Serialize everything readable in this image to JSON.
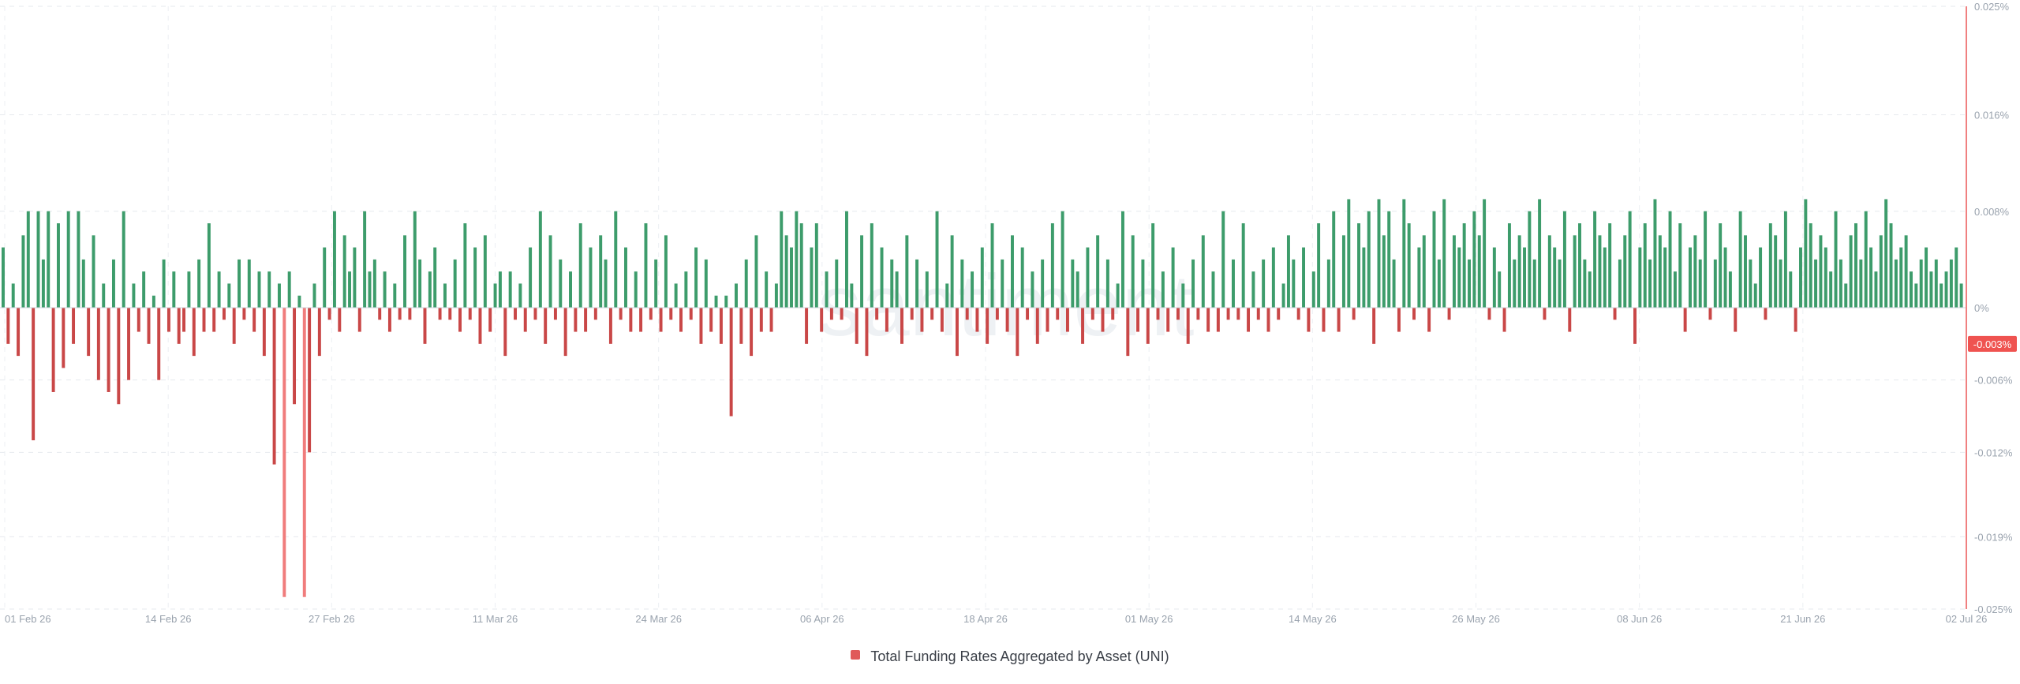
{
  "chart_data": {
    "type": "bar",
    "legend": {
      "label": "Total Funding Rates Aggregated by Asset (UNI)",
      "position": "bottom-center"
    },
    "watermark": "santiment",
    "grid": true,
    "y_axis": {
      "side": "right",
      "ylim": [
        -0.025,
        0.025
      ],
      "ticks": [
        {
          "value": 0.025,
          "label": "0.025%"
        },
        {
          "value": 0.016,
          "label": "0.016%"
        },
        {
          "value": 0.008,
          "label": "0.008%"
        },
        {
          "value": 0,
          "label": "0%"
        },
        {
          "value": -0.006,
          "label": "-0.006%"
        },
        {
          "value": -0.012,
          "label": "-0.012%"
        },
        {
          "value": -0.019,
          "label": "-0.019%"
        },
        {
          "value": -0.025,
          "label": "-0.025%"
        }
      ],
      "current_value": -0.003,
      "current_label": "-0.003%"
    },
    "x_axis": {
      "range": [
        "2026-02-01",
        "2026-07-02"
      ],
      "ticks": [
        "01 Feb 26",
        "14 Feb 26",
        "27 Feb 26",
        "11 Mar 26",
        "24 Mar 26",
        "06 Apr 26",
        "18 Apr 26",
        "01 May 26",
        "14 May 26",
        "26 May 26",
        "08 Jun 26",
        "21 Jun 26",
        "02 Jul 26"
      ]
    },
    "colors": {
      "positive": "#3d9c6b",
      "negative": "#c94747",
      "spike": "#f07c7c",
      "axis_line": "#f08080",
      "badge": "#ef5350"
    },
    "series": [
      {
        "interval_hours": 8,
        "start": "2026-02-01 00:00",
        "values": [
          0.005,
          -0.003,
          0.002,
          -0.004,
          0.006,
          0.008,
          -0.011,
          0.008,
          0.004,
          0.008,
          -0.007,
          0.007,
          -0.005,
          0.008,
          -0.003,
          0.008,
          0.004,
          -0.004,
          0.006,
          -0.006,
          0.002,
          -0.007,
          0.004,
          -0.008,
          0.008,
          -0.006,
          0.002,
          -0.002,
          0.003,
          -0.003,
          0.001,
          -0.006,
          0.004,
          -0.002,
          0.003,
          -0.003,
          -0.002,
          0.003,
          -0.004,
          0.004,
          -0.002,
          0.007,
          -0.002,
          0.003,
          -0.001,
          0.002,
          -0.003,
          0.004,
          -0.001,
          0.004,
          -0.002,
          0.003,
          -0.004,
          0.003,
          -0.013,
          0.002,
          -0.024,
          0.003,
          -0.008,
          0.001,
          -0.024,
          -0.012,
          0.002,
          -0.004,
          0.005,
          -0.001,
          0.008,
          -0.002,
          0.006,
          0.003,
          0.005,
          -0.002,
          0.008,
          0.003,
          0.004,
          -0.001,
          0.003,
          -0.002,
          0.002,
          -0.001,
          0.006,
          -0.001,
          0.008,
          0.004,
          -0.003,
          0.003,
          0.005,
          -0.001,
          0.002,
          -0.001,
          0.004,
          -0.002,
          0.007,
          -0.001,
          0.005,
          -0.003,
          0.006,
          -0.002,
          0.002,
          0.003,
          -0.004,
          0.003,
          -0.001,
          0.002,
          -0.002,
          0.005,
          -0.001,
          0.008,
          -0.003,
          0.006,
          -0.001,
          0.004,
          -0.004,
          0.003,
          -0.002,
          0.007,
          -0.002,
          0.005,
          -0.001,
          0.006,
          0.004,
          -0.003,
          0.008,
          -0.001,
          0.005,
          -0.002,
          0.003,
          -0.002,
          0.007,
          -0.001,
          0.004,
          -0.002,
          0.006,
          -0.001,
          0.002,
          -0.002,
          0.003,
          -0.001,
          0.005,
          -0.003,
          0.004,
          -0.002,
          0.001,
          -0.003,
          0.001,
          -0.009,
          0.002,
          -0.003,
          0.004,
          -0.004,
          0.006,
          -0.002,
          0.003,
          -0.002,
          0.002,
          0.008,
          0.006,
          0.005,
          0.008,
          0.007,
          -0.003,
          0.005,
          0.007,
          -0.002,
          0.003,
          -0.001,
          0.004,
          -0.001,
          0.008,
          0.002,
          -0.003,
          0.006,
          -0.004,
          0.007,
          -0.001,
          0.005,
          -0.002,
          0.004,
          0.003,
          -0.003,
          0.006,
          -0.001,
          0.004,
          -0.002,
          0.003,
          -0.001,
          0.008,
          -0.002,
          0.002,
          0.006,
          -0.004,
          0.004,
          -0.001,
          0.003,
          -0.002,
          0.005,
          -0.003,
          0.007,
          -0.001,
          0.004,
          -0.002,
          0.006,
          -0.004,
          0.005,
          -0.001,
          0.003,
          -0.003,
          0.004,
          -0.002,
          0.007,
          -0.001,
          0.008,
          -0.002,
          0.004,
          0.003,
          -0.003,
          0.005,
          -0.001,
          0.006,
          -0.002,
          0.004,
          -0.001,
          0.002,
          0.008,
          -0.004,
          0.006,
          -0.002,
          0.004,
          -0.003,
          0.007,
          -0.001,
          0.003,
          -0.002,
          0.005,
          -0.001,
          0.002,
          -0.003,
          0.004,
          -0.001,
          0.006,
          -0.002,
          0.003,
          -0.002,
          0.008,
          -0.001,
          0.004,
          -0.001,
          0.007,
          -0.002,
          0.003,
          -0.001,
          0.004,
          -0.002,
          0.005,
          -0.001,
          0.002,
          0.006,
          0.004,
          -0.001,
          0.005,
          -0.002,
          0.003,
          0.007,
          -0.002,
          0.004,
          0.008,
          -0.002,
          0.006,
          0.009,
          -0.001,
          0.007,
          0.005,
          0.008,
          -0.003,
          0.009,
          0.006,
          0.008,
          0.004,
          -0.002,
          0.009,
          0.007,
          -0.001,
          0.005,
          0.006,
          -0.002,
          0.008,
          0.004,
          0.009,
          -0.001,
          0.006,
          0.005,
          0.007,
          0.004,
          0.008,
          0.006,
          0.009,
          -0.001,
          0.005,
          0.003,
          -0.002,
          0.007,
          0.004,
          0.006,
          0.005,
          0.008,
          0.004,
          0.009,
          -0.001,
          0.006,
          0.005,
          0.004,
          0.008,
          -0.002,
          0.006,
          0.007,
          0.004,
          0.003,
          0.008,
          0.006,
          0.005,
          0.007,
          -0.001,
          0.004,
          0.006,
          0.008,
          -0.003,
          0.005,
          0.007,
          0.004,
          0.009,
          0.006,
          0.005,
          0.008,
          0.003,
          0.007,
          -0.002,
          0.005,
          0.006,
          0.004,
          0.008,
          -0.001,
          0.004,
          0.007,
          0.005,
          0.003,
          -0.002,
          0.008,
          0.006,
          0.004,
          0.002,
          0.005,
          -0.001,
          0.007,
          0.006,
          0.004,
          0.008,
          0.003,
          -0.002,
          0.005,
          0.009,
          0.007,
          0.004,
          0.006,
          0.005,
          0.003,
          0.008,
          0.004,
          0.002,
          0.006,
          0.007,
          0.004,
          0.008,
          0.005,
          0.003,
          0.006,
          0.009,
          0.007,
          0.004,
          0.005,
          0.006,
          0.003,
          0.002,
          0.004,
          0.005,
          0.003,
          0.004,
          0.002,
          0.003,
          0.004,
          0.005,
          0.002
        ],
        "color_rule": "green if value > 0, red if value < 0, light red for spikes below -0.016"
      }
    ]
  }
}
